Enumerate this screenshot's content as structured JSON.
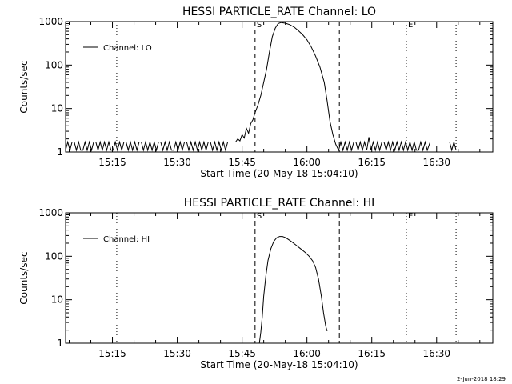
{
  "chart_data": [
    {
      "type": "line",
      "title": "HESSI PARTICLE_RATE Channel: LO",
      "xlabel": "Start Time (20-May-18 15:04:10)",
      "ylabel": "Counts/sec",
      "yscale": "log",
      "ylim": [
        1,
        1000
      ],
      "xlim": [
        "15:04:10",
        "16:43:00"
      ],
      "x_ticks": [
        "15:15",
        "15:30",
        "15:45",
        "16:00",
        "16:15",
        "16:30"
      ],
      "y_ticks": [
        "1",
        "10",
        "100",
        "1000"
      ],
      "legend": {
        "position": "top-left",
        "entries": [
          "Channel: LO"
        ]
      },
      "markers": [
        {
          "label": "S",
          "time": "15:48:00",
          "style": "dashed"
        },
        {
          "label": "E",
          "time": "16:23:00",
          "style": "dotted"
        }
      ],
      "vlines": [
        {
          "time": "15:16:00",
          "style": "dotted"
        },
        {
          "time": "16:07:30",
          "style": "dashed"
        },
        {
          "time": "16:34:30",
          "style": "dotted"
        }
      ],
      "series": [
        {
          "name": "Channel: LO",
          "points": [
            [
              "15:04:10",
              1.1
            ],
            [
              "15:04:40",
              1.7
            ],
            [
              "15:05:10",
              1.1
            ],
            [
              "15:05:40",
              1.7
            ],
            [
              "15:06:10",
              1.7
            ],
            [
              "15:06:40",
              1.1
            ],
            [
              "15:07:10",
              1.7
            ],
            [
              "15:07:40",
              1.1
            ],
            [
              "15:08:10",
              1.1
            ],
            [
              "15:08:40",
              1.7
            ],
            [
              "15:09:10",
              1.1
            ],
            [
              "15:09:40",
              1.7
            ],
            [
              "15:10:10",
              1.1
            ],
            [
              "15:10:40",
              1.7
            ],
            [
              "15:11:10",
              1.7
            ],
            [
              "15:11:40",
              1.1
            ],
            [
              "15:12:10",
              1.7
            ],
            [
              "15:12:40",
              1.1
            ],
            [
              "15:13:10",
              1.7
            ],
            [
              "15:13:40",
              1.1
            ],
            [
              "15:14:10",
              1.7
            ],
            [
              "15:14:40",
              1.1
            ],
            [
              "15:15:10",
              1.1
            ],
            [
              "15:15:40",
              1.7
            ],
            [
              "15:16:10",
              1.1
            ],
            [
              "15:16:40",
              1.7
            ],
            [
              "15:17:10",
              1.1
            ],
            [
              "15:17:40",
              1.7
            ],
            [
              "15:18:10",
              1.7
            ],
            [
              "15:18:40",
              1.1
            ],
            [
              "15:19:10",
              1.7
            ],
            [
              "15:19:40",
              1.1
            ],
            [
              "15:20:10",
              1.7
            ],
            [
              "15:20:40",
              1.1
            ],
            [
              "15:21:10",
              1.7
            ],
            [
              "15:21:40",
              1.7
            ],
            [
              "15:22:10",
              1.1
            ],
            [
              "15:22:40",
              1.7
            ],
            [
              "15:23:10",
              1.1
            ],
            [
              "15:23:40",
              1.7
            ],
            [
              "15:24:10",
              1.1
            ],
            [
              "15:24:40",
              1.7
            ],
            [
              "15:25:10",
              1.1
            ],
            [
              "15:25:40",
              1.7
            ],
            [
              "15:26:10",
              1.7
            ],
            [
              "15:26:40",
              1.1
            ],
            [
              "15:27:10",
              1.7
            ],
            [
              "15:27:40",
              1.1
            ],
            [
              "15:28:10",
              1.7
            ],
            [
              "15:28:40",
              1.1
            ],
            [
              "15:29:10",
              1.1
            ],
            [
              "15:29:40",
              1.7
            ],
            [
              "15:30:10",
              1.1
            ],
            [
              "15:30:40",
              1.7
            ],
            [
              "15:31:10",
              1.1
            ],
            [
              "15:31:40",
              1.7
            ],
            [
              "15:32:10",
              1.7
            ],
            [
              "15:32:40",
              1.1
            ],
            [
              "15:33:10",
              1.7
            ],
            [
              "15:33:40",
              1.1
            ],
            [
              "15:34:10",
              1.7
            ],
            [
              "15:34:40",
              1.1
            ],
            [
              "15:35:10",
              1.7
            ],
            [
              "15:35:40",
              1.1
            ],
            [
              "15:36:10",
              1.7
            ],
            [
              "15:36:40",
              1.1
            ],
            [
              "15:37:10",
              1.7
            ],
            [
              "15:37:40",
              1.7
            ],
            [
              "15:38:10",
              1.1
            ],
            [
              "15:38:40",
              1.7
            ],
            [
              "15:39:10",
              1.1
            ],
            [
              "15:39:40",
              1.7
            ],
            [
              "15:40:10",
              1.1
            ],
            [
              "15:40:40",
              1.7
            ],
            [
              "15:41:10",
              1.1
            ],
            [
              "15:41:40",
              1.7
            ],
            [
              "15:42:10",
              1.7
            ],
            [
              "15:42:40",
              1.7
            ],
            [
              "15:43:30",
              1.7
            ],
            [
              "15:44:00",
              2.0
            ],
            [
              "15:44:30",
              1.8
            ],
            [
              "15:45:00",
              2.5
            ],
            [
              "15:45:30",
              2.1
            ],
            [
              "15:46:00",
              3.5
            ],
            [
              "15:46:30",
              2.7
            ],
            [
              "15:47:00",
              4.5
            ],
            [
              "15:47:30",
              5.5
            ],
            [
              "15:48:00",
              8
            ],
            [
              "15:48:40",
              12
            ],
            [
              "15:49:20",
              20
            ],
            [
              "15:50:00",
              40
            ],
            [
              "15:50:40",
              80
            ],
            [
              "15:51:20",
              200
            ],
            [
              "15:52:00",
              450
            ],
            [
              "15:52:40",
              700
            ],
            [
              "15:53:20",
              900
            ],
            [
              "15:54:00",
              950
            ],
            [
              "15:55:00",
              920
            ],
            [
              "15:56:00",
              850
            ],
            [
              "15:57:00",
              750
            ],
            [
              "15:58:00",
              620
            ],
            [
              "15:59:00",
              500
            ],
            [
              "16:00:00",
              380
            ],
            [
              "16:01:00",
              260
            ],
            [
              "16:02:00",
              160
            ],
            [
              "16:03:00",
              90
            ],
            [
              "16:04:00",
              40
            ],
            [
              "16:04:40",
              15
            ],
            [
              "16:05:20",
              5
            ],
            [
              "16:06:00",
              2.5
            ],
            [
              "16:06:40",
              1.5
            ],
            [
              "16:07:20",
              1.1
            ],
            [
              "16:07:50",
              1.7
            ],
            [
              "16:08:20",
              1.1
            ],
            [
              "16:08:50",
              1.7
            ],
            [
              "16:09:20",
              1.1
            ],
            [
              "16:09:50",
              1.7
            ],
            [
              "16:10:20",
              1.1
            ],
            [
              "16:10:50",
              1.7
            ],
            [
              "16:11:20",
              1.7
            ],
            [
              "16:11:50",
              1.1
            ],
            [
              "16:12:20",
              1.7
            ],
            [
              "16:12:50",
              1.1
            ],
            [
              "16:13:20",
              1.7
            ],
            [
              "16:13:50",
              1.1
            ],
            [
              "16:14:20",
              2.2
            ],
            [
              "16:14:50",
              1.1
            ],
            [
              "16:15:20",
              1.7
            ],
            [
              "16:15:50",
              1.1
            ],
            [
              "16:16:20",
              1.7
            ],
            [
              "16:16:50",
              1.1
            ],
            [
              "16:17:20",
              1.7
            ],
            [
              "16:17:50",
              1.7
            ],
            [
              "16:18:20",
              1.1
            ],
            [
              "16:18:50",
              1.7
            ],
            [
              "16:19:20",
              1.1
            ],
            [
              "16:19:50",
              1.7
            ],
            [
              "16:20:20",
              1.1
            ],
            [
              "16:20:50",
              1.7
            ],
            [
              "16:21:20",
              1.1
            ],
            [
              "16:21:50",
              1.7
            ],
            [
              "16:22:20",
              1.1
            ],
            [
              "16:22:50",
              1.7
            ],
            [
              "16:23:20",
              1.1
            ],
            [
              "16:23:50",
              1.7
            ],
            [
              "16:24:20",
              1.1
            ],
            [
              "16:24:50",
              1.7
            ],
            [
              "16:25:20",
              1.1
            ],
            [
              "16:25:50",
              1.1
            ],
            [
              "16:26:20",
              1.7
            ],
            [
              "16:26:50",
              1.1
            ],
            [
              "16:27:20",
              1.7
            ],
            [
              "16:27:50",
              1.1
            ],
            [
              "16:28:30",
              1.7
            ],
            [
              "16:30:00",
              1.7
            ],
            [
              "16:31:30",
              1.7
            ],
            [
              "16:33:00",
              1.7
            ],
            [
              "16:33:30",
              1.1
            ],
            [
              "16:34:00",
              1.7
            ],
            [
              "16:34:30",
              1.1
            ]
          ]
        }
      ]
    },
    {
      "type": "line",
      "title": "HESSI PARTICLE_RATE Channel: HI",
      "xlabel": "Start Time (20-May-18 15:04:10)",
      "ylabel": "Counts/sec",
      "yscale": "log",
      "ylim": [
        1,
        1000
      ],
      "xlim": [
        "15:04:10",
        "16:43:00"
      ],
      "x_ticks": [
        "15:15",
        "15:30",
        "15:45",
        "16:00",
        "16:15",
        "16:30"
      ],
      "y_ticks": [
        "1",
        "10",
        "100",
        "1000"
      ],
      "legend": {
        "position": "top-left",
        "entries": [
          "Channel: HI"
        ]
      },
      "markers": [
        {
          "label": "S",
          "time": "15:48:00",
          "style": "dashed"
        },
        {
          "label": "E",
          "time": "16:23:00",
          "style": "dotted"
        }
      ],
      "vlines": [
        {
          "time": "15:16:00",
          "style": "dotted"
        },
        {
          "time": "16:07:30",
          "style": "dashed"
        },
        {
          "time": "16:34:30",
          "style": "dotted"
        }
      ],
      "series": [
        {
          "name": "Channel: HI",
          "points": [
            [
              "15:49:00",
              1.0
            ],
            [
              "15:49:20",
              1.8
            ],
            [
              "15:49:40",
              4
            ],
            [
              "15:50:00",
              12
            ],
            [
              "15:50:30",
              35
            ],
            [
              "15:51:00",
              80
            ],
            [
              "15:51:40",
              150
            ],
            [
              "15:52:20",
              220
            ],
            [
              "15:53:00",
              265
            ],
            [
              "15:53:40",
              285
            ],
            [
              "15:54:20",
              285
            ],
            [
              "15:55:00",
              270
            ],
            [
              "15:55:40",
              245
            ],
            [
              "15:56:30",
              215
            ],
            [
              "15:57:30",
              180
            ],
            [
              "15:58:30",
              150
            ],
            [
              "15:59:30",
              125
            ],
            [
              "16:00:30",
              100
            ],
            [
              "16:01:20",
              78
            ],
            [
              "16:02:00",
              55
            ],
            [
              "16:02:40",
              30
            ],
            [
              "16:03:20",
              12
            ],
            [
              "16:03:50",
              5
            ],
            [
              "16:04:20",
              2.5
            ],
            [
              "16:04:40",
              1.9
            ]
          ]
        }
      ]
    }
  ],
  "timestamp": "2-Jun-2018 18:29"
}
